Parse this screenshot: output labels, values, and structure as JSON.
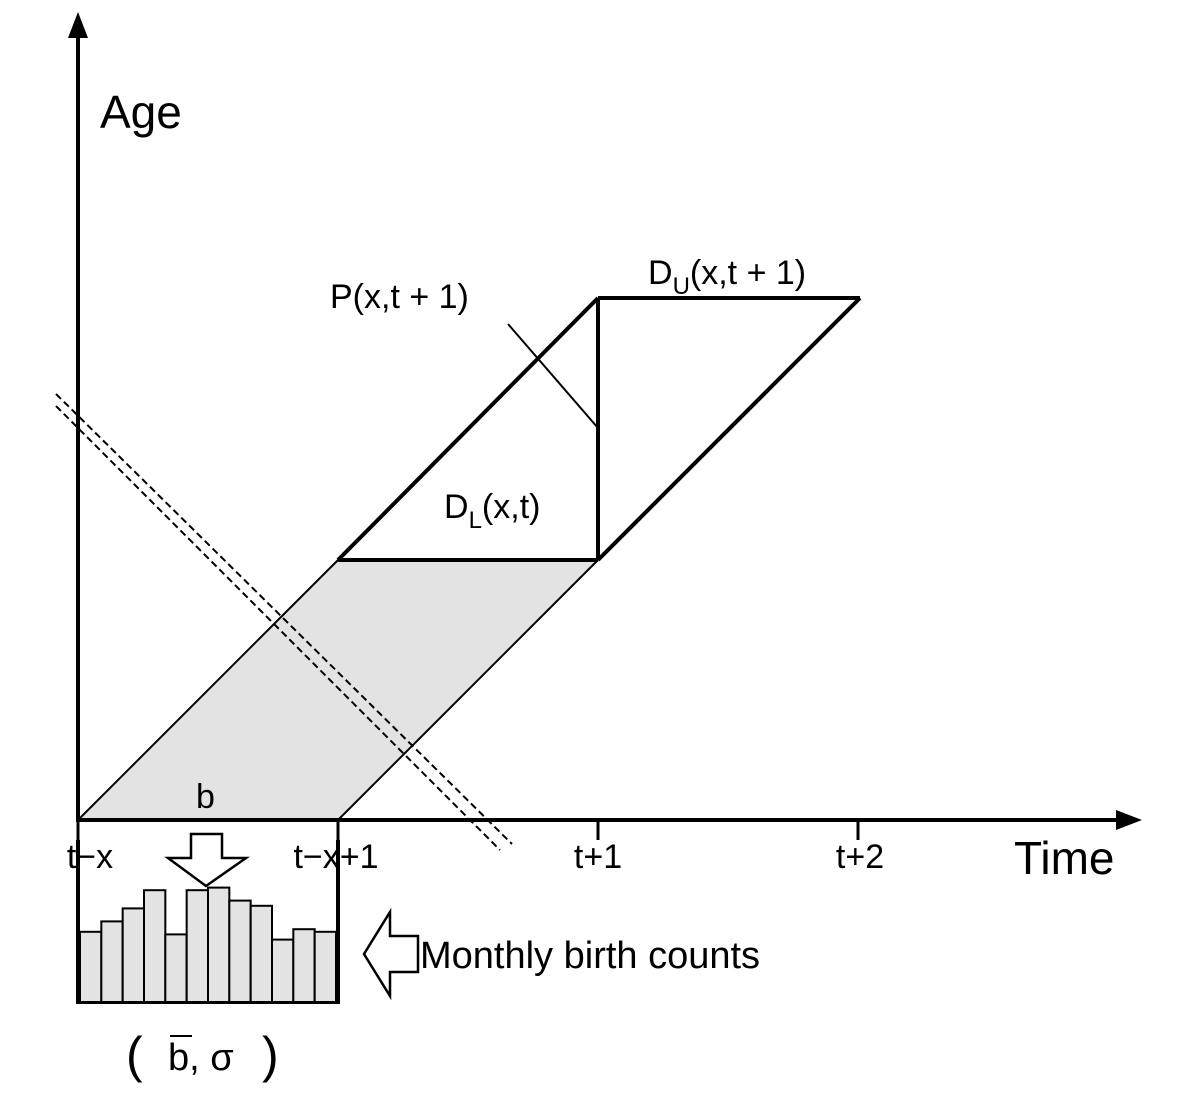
{
  "axes": {
    "y_label": "Age",
    "x_label": "Time"
  },
  "ticks": [
    "t−x",
    "t−x+1",
    "t+1",
    "t+2"
  ],
  "labels": {
    "b": "b",
    "P_main": "P(x,t + 1)",
    "DL_main": "D",
    "DL_sub": "L",
    "DL_rest": "(x,t)",
    "DU_main": "D",
    "DU_sub": "U",
    "DU_rest": "(x,t + 1)",
    "monthly": "Monthly birth counts",
    "bbar_open": "(",
    "bbar_b": "b",
    "bbar_rest": ", σ",
    "bbar_close": ")"
  },
  "monthly_births": {
    "values": [
      0.54,
      0.62,
      0.72,
      0.86,
      0.52,
      0.86,
      0.88,
      0.78,
      0.74,
      0.48,
      0.56,
      0.54
    ]
  },
  "colors": {
    "shade": "#e3e3e3",
    "ink": "#000000"
  }
}
